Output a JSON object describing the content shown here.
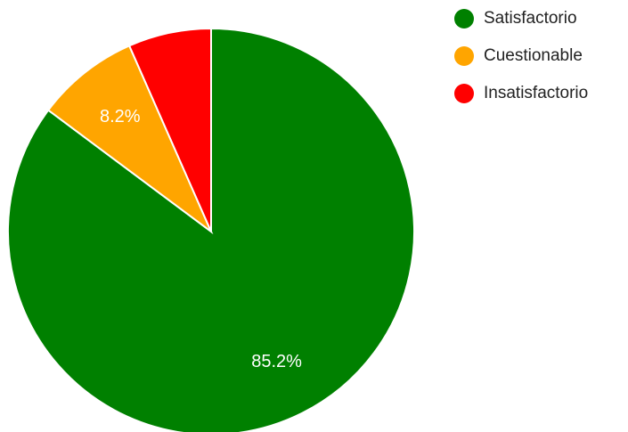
{
  "chart_data": {
    "type": "pie",
    "title": "",
    "slices": [
      {
        "label": "Satisfactorio",
        "value": 85.2,
        "color": "#008000",
        "data_label": "85.2%"
      },
      {
        "label": "Cuestionable",
        "value": 8.2,
        "color": "#FFA500",
        "data_label": "8.2%"
      },
      {
        "label": "Insatisfactorio",
        "value": 6.6,
        "color": "#FF0000",
        "data_label": ""
      }
    ],
    "legend_position": "top-right",
    "start_angle": "12 o'clock",
    "direction": "clockwise"
  }
}
